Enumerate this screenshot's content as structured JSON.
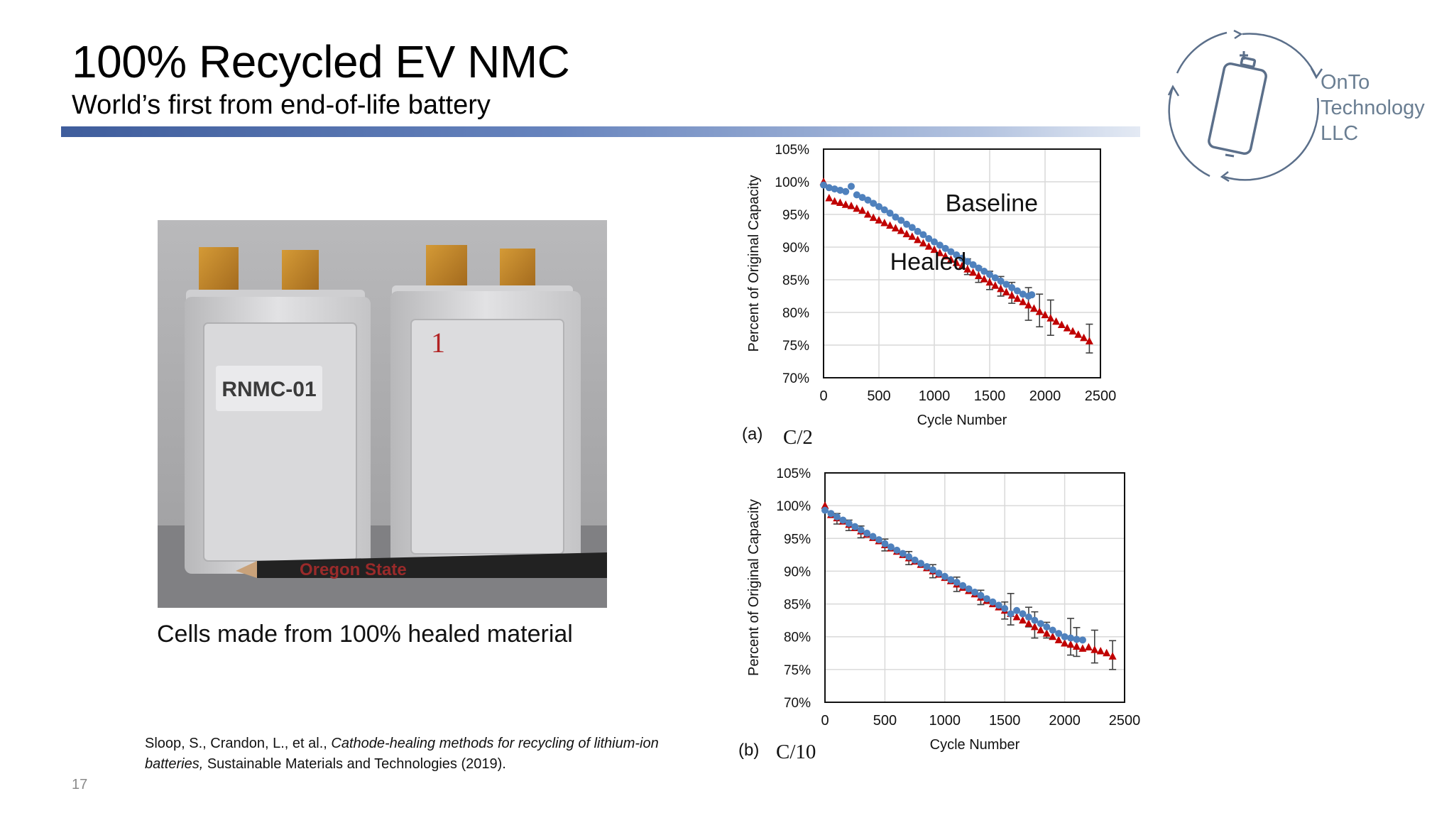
{
  "slide": {
    "title": "100% Recycled EV NMC",
    "subtitle": "World’s first from end-of-life battery",
    "page_number": "17"
  },
  "logo": {
    "line1": "OnTo",
    "line2": "Technology",
    "line3": "LLC",
    "color": "#5b6f8a"
  },
  "photo": {
    "cell_label": "RNMC-01",
    "cell_number": "1",
    "pencil_text": "Oregon State"
  },
  "caption": "Cells made from 100% healed material",
  "citation": {
    "authors": "Sloop, S., Crandon, L., et al., ",
    "title": "Cathode-healing methods for recycling of lithium-ion batteries,",
    "journal": " Sustainable Materials and Technologies (2019)."
  },
  "colors": {
    "baseline": "#4f81bd",
    "healed": "#c00000",
    "errorbar": "#404040",
    "grid": "#d9d9d9"
  },
  "chart_data": [
    {
      "type": "scatter",
      "panel": "(a)",
      "rate": "C/2",
      "xlabel": "Cycle Number",
      "ylabel": "Percent of Original Capacity",
      "xlim": [
        0,
        2500
      ],
      "ylim": [
        70,
        105
      ],
      "xticks": [
        "0",
        "500",
        "1000",
        "1500",
        "2000",
        "2500"
      ],
      "yticks": [
        "70%",
        "75%",
        "80%",
        "85%",
        "90%",
        "95%",
        "100%",
        "105%"
      ],
      "grid": true,
      "annotations": [
        "Baseline",
        "Healed"
      ],
      "series": [
        {
          "name": "Baseline",
          "marker": "circle",
          "points": [
            [
              0,
              99.5
            ],
            [
              50,
              99.1
            ],
            [
              100,
              98.9
            ],
            [
              150,
              98.7
            ],
            [
              200,
              98.5
            ],
            [
              250,
              99.3
            ],
            [
              300,
              98.0
            ],
            [
              350,
              97.6
            ],
            [
              400,
              97.2
            ],
            [
              450,
              96.7
            ],
            [
              500,
              96.2
            ],
            [
              550,
              95.7
            ],
            [
              600,
              95.2
            ],
            [
              650,
              94.6
            ],
            [
              700,
              94.1
            ],
            [
              750,
              93.5
            ],
            [
              800,
              93.0
            ],
            [
              850,
              92.4
            ],
            [
              900,
              91.9
            ],
            [
              950,
              91.3
            ],
            [
              1000,
              90.8
            ],
            [
              1050,
              90.3
            ],
            [
              1100,
              89.8
            ],
            [
              1150,
              89.3
            ],
            [
              1200,
              88.8
            ],
            [
              1250,
              88.3
            ],
            [
              1300,
              87.8
            ],
            [
              1350,
              87.3
            ],
            [
              1400,
              86.8
            ],
            [
              1450,
              86.3
            ],
            [
              1500,
              85.8
            ],
            [
              1550,
              85.3
            ],
            [
              1600,
              84.8
            ],
            [
              1650,
              84.3
            ],
            [
              1700,
              83.8
            ],
            [
              1750,
              83.3
            ],
            [
              1800,
              82.8
            ],
            [
              1850,
              82.5
            ],
            [
              1880,
              82.7
            ]
          ]
        },
        {
          "name": "Healed",
          "marker": "triangle",
          "points": [
            [
              0,
              100.0
            ],
            [
              50,
              97.5
            ],
            [
              100,
              97.0
            ],
            [
              150,
              96.8
            ],
            [
              200,
              96.5
            ],
            [
              250,
              96.3
            ],
            [
              300,
              95.9
            ],
            [
              350,
              95.6
            ],
            [
              400,
              95.0
            ],
            [
              450,
              94.5
            ],
            [
              500,
              94.1
            ],
            [
              550,
              93.7
            ],
            [
              600,
              93.3
            ],
            [
              650,
              92.9
            ],
            [
              700,
              92.5
            ],
            [
              750,
              92.0
            ],
            [
              800,
              91.6
            ],
            [
              850,
              91.1
            ],
            [
              900,
              90.6
            ],
            [
              950,
              90.1
            ],
            [
              1000,
              89.6
            ],
            [
              1050,
              89.1
            ],
            [
              1100,
              88.6
            ],
            [
              1150,
              88.1
            ],
            [
              1200,
              87.6
            ],
            [
              1250,
              87.1
            ],
            [
              1300,
              86.6
            ],
            [
              1350,
              86.1
            ],
            [
              1400,
              85.6
            ],
            [
              1450,
              85.1
            ],
            [
              1500,
              84.6
            ],
            [
              1550,
              84.1
            ],
            [
              1600,
              83.6
            ],
            [
              1650,
              83.1
            ],
            [
              1700,
              82.6
            ],
            [
              1750,
              82.1
            ],
            [
              1800,
              81.6
            ],
            [
              1850,
              81.1
            ],
            [
              1900,
              80.6
            ],
            [
              1950,
              80.1
            ],
            [
              2000,
              79.6
            ],
            [
              2050,
              79.1
            ],
            [
              2100,
              78.6
            ],
            [
              2150,
              78.1
            ],
            [
              2200,
              77.6
            ],
            [
              2250,
              77.1
            ],
            [
              2300,
              76.6
            ],
            [
              2350,
              76.1
            ],
            [
              2400,
              75.6
            ]
          ]
        }
      ],
      "error_bars": [
        [
          1300,
          87.0,
          1.2
        ],
        [
          1400,
          85.8,
          1.2
        ],
        [
          1500,
          84.9,
          1.4
        ],
        [
          1600,
          84.0,
          1.5
        ],
        [
          1700,
          83.0,
          1.6
        ],
        [
          1850,
          81.3,
          2.5
        ],
        [
          1950,
          80.3,
          2.5
        ],
        [
          2050,
          79.2,
          2.7
        ],
        [
          2400,
          76.0,
          2.2
        ]
      ]
    },
    {
      "type": "scatter",
      "panel": "(b)",
      "rate": "C/10",
      "xlabel": "Cycle Number",
      "ylabel": "Percent of Original Capacity",
      "xlim": [
        0,
        2500
      ],
      "ylim": [
        70,
        105
      ],
      "xticks": [
        "0",
        "500",
        "1000",
        "1500",
        "2000",
        "2500"
      ],
      "yticks": [
        "70%",
        "75%",
        "80%",
        "85%",
        "90%",
        "95%",
        "100%",
        "105%"
      ],
      "grid": true,
      "series": [
        {
          "name": "Baseline",
          "marker": "circle",
          "points": [
            [
              0,
              99.3
            ],
            [
              50,
              98.8
            ],
            [
              100,
              98.3
            ],
            [
              150,
              97.8
            ],
            [
              200,
              97.3
            ],
            [
              250,
              96.8
            ],
            [
              300,
              96.3
            ],
            [
              350,
              95.8
            ],
            [
              400,
              95.3
            ],
            [
              450,
              94.8
            ],
            [
              500,
              94.2
            ],
            [
              550,
              93.7
            ],
            [
              600,
              93.2
            ],
            [
              650,
              92.7
            ],
            [
              700,
              92.2
            ],
            [
              750,
              91.7
            ],
            [
              800,
              91.2
            ],
            [
              850,
              90.7
            ],
            [
              900,
              90.2
            ],
            [
              950,
              89.7
            ],
            [
              1000,
              89.2
            ],
            [
              1050,
              88.7
            ],
            [
              1100,
              88.3
            ],
            [
              1150,
              87.8
            ],
            [
              1200,
              87.3
            ],
            [
              1250,
              86.8
            ],
            [
              1300,
              86.3
            ],
            [
              1350,
              85.8
            ],
            [
              1400,
              85.3
            ],
            [
              1450,
              84.8
            ],
            [
              1500,
              84.3
            ],
            [
              1550,
              83.5
            ],
            [
              1600,
              84.0
            ],
            [
              1650,
              83.5
            ],
            [
              1700,
              83.0
            ],
            [
              1750,
              82.5
            ],
            [
              1800,
              82.0
            ],
            [
              1850,
              81.5
            ],
            [
              1900,
              81.0
            ],
            [
              1950,
              80.5
            ],
            [
              2000,
              80.0
            ],
            [
              2050,
              79.8
            ],
            [
              2100,
              79.6
            ],
            [
              2150,
              79.5
            ]
          ]
        },
        {
          "name": "Healed",
          "marker": "triangle",
          "points": [
            [
              0,
              100.0
            ],
            [
              50,
              98.6
            ],
            [
              100,
              98.1
            ],
            [
              150,
              97.6
            ],
            [
              200,
              97.1
            ],
            [
              250,
              96.6
            ],
            [
              300,
              96.1
            ],
            [
              350,
              95.6
            ],
            [
              400,
              95.1
            ],
            [
              450,
              94.6
            ],
            [
              500,
              94.0
            ],
            [
              550,
              93.5
            ],
            [
              600,
              93.0
            ],
            [
              650,
              92.5
            ],
            [
              700,
              92.0
            ],
            [
              750,
              91.5
            ],
            [
              800,
              91.0
            ],
            [
              850,
              90.5
            ],
            [
              900,
              90.0
            ],
            [
              950,
              89.5
            ],
            [
              1000,
              89.0
            ],
            [
              1050,
              88.5
            ],
            [
              1100,
              88.0
            ],
            [
              1150,
              87.5
            ],
            [
              1200,
              87.0
            ],
            [
              1250,
              86.5
            ],
            [
              1300,
              86.0
            ],
            [
              1350,
              85.5
            ],
            [
              1400,
              85.0
            ],
            [
              1450,
              84.5
            ],
            [
              1500,
              84.0
            ],
            [
              1550,
              83.5
            ],
            [
              1600,
              83.0
            ],
            [
              1650,
              82.5
            ],
            [
              1700,
              82.0
            ],
            [
              1750,
              81.5
            ],
            [
              1800,
              81.0
            ],
            [
              1850,
              80.5
            ],
            [
              1900,
              80.0
            ],
            [
              1950,
              79.5
            ],
            [
              2000,
              79.0
            ],
            [
              2050,
              78.8
            ],
            [
              2100,
              78.5
            ],
            [
              2150,
              78.2
            ],
            [
              2200,
              78.4
            ],
            [
              2250,
              78.0
            ],
            [
              2300,
              77.8
            ],
            [
              2350,
              77.5
            ],
            [
              2400,
              77.0
            ]
          ]
        }
      ],
      "error_bars": [
        [
          100,
          98.0,
          0.8
        ],
        [
          200,
          97.0,
          0.8
        ],
        [
          300,
          96.0,
          0.9
        ],
        [
          500,
          94.0,
          0.9
        ],
        [
          700,
          92.0,
          1.0
        ],
        [
          900,
          90.0,
          1.0
        ],
        [
          1100,
          88.0,
          1.1
        ],
        [
          1300,
          86.0,
          1.1
        ],
        [
          1500,
          84.0,
          1.3
        ],
        [
          1550,
          84.2,
          2.4
        ],
        [
          1700,
          83.0,
          1.5
        ],
        [
          1750,
          81.8,
          2.0
        ],
        [
          1850,
          81.0,
          1.2
        ],
        [
          2050,
          80.0,
          2.8
        ],
        [
          2100,
          79.2,
          2.2
        ],
        [
          2250,
          78.5,
          2.5
        ],
        [
          2400,
          77.2,
          2.2
        ]
      ]
    }
  ]
}
